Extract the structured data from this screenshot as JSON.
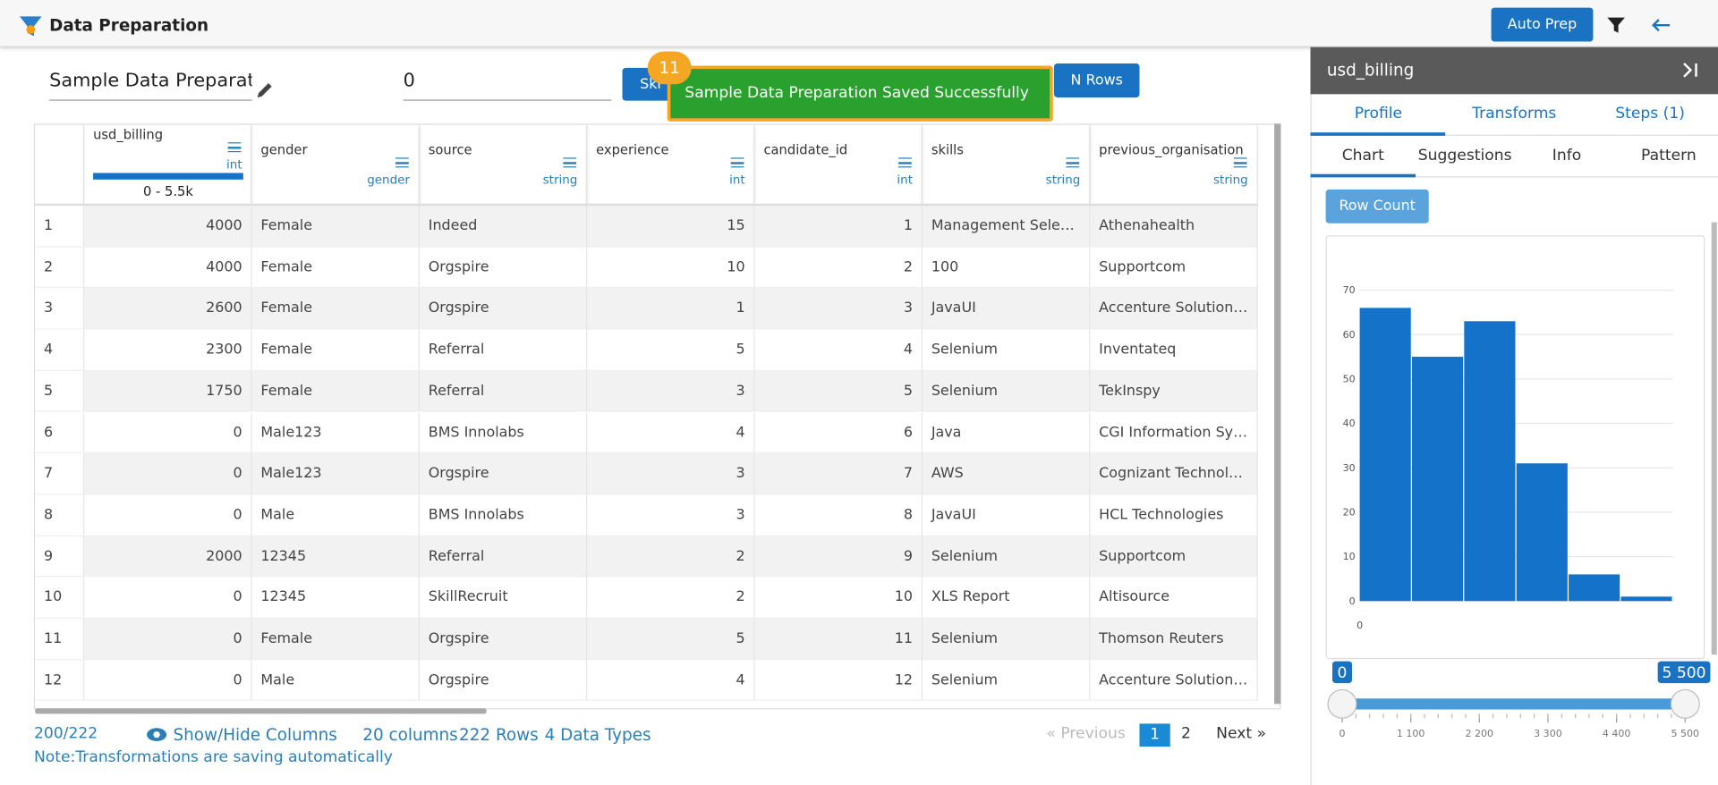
{
  "header": {
    "title": "Data Preparation",
    "auto_prep": "Auto Prep"
  },
  "toolbar": {
    "name": "Sample Data Preparation",
    "rows_input": 0,
    "skip": "Ski",
    "n_rows": "N Rows"
  },
  "toast": {
    "step": 11,
    "message": "Sample Data Preparation Saved Successfully"
  },
  "table": {
    "columns": [
      {
        "name": "usd_billing",
        "type": "int",
        "range": "0 - 5.5k"
      },
      {
        "name": "gender",
        "type": "gender"
      },
      {
        "name": "source",
        "type": "string"
      },
      {
        "name": "experience",
        "type": "int"
      },
      {
        "name": "candidate_id",
        "type": "int"
      },
      {
        "name": "skills",
        "type": "string"
      },
      {
        "name": "previous_organisation",
        "type": "string"
      }
    ],
    "rows": [
      [
        1,
        4000,
        "Female",
        "Indeed",
        15,
        1,
        "Management Selenium",
        "Athenahealth"
      ],
      [
        2,
        4000,
        "Female",
        "Orgspire",
        10,
        2,
        "100",
        "Supportcom"
      ],
      [
        3,
        2600,
        "Female",
        "Orgspire",
        1,
        3,
        "JavaUI",
        "Accenture Solutions Pvt Ltd"
      ],
      [
        4,
        2300,
        "Female",
        "Referral",
        5,
        4,
        "Selenium",
        "Inventateq"
      ],
      [
        5,
        1750,
        "Female",
        "Referral",
        3,
        5,
        "Selenium",
        "TekInspy"
      ],
      [
        6,
        0,
        "Male123",
        "BMS Innolabs",
        4,
        6,
        "Java",
        "CGI Information Systems"
      ],
      [
        7,
        0,
        "Male123",
        "Orgspire",
        3,
        7,
        "AWS",
        "Cognizant Technology Solutions"
      ],
      [
        8,
        0,
        "Male",
        "BMS Innolabs",
        3,
        8,
        "JavaUI",
        "HCL Technologies"
      ],
      [
        9,
        2000,
        "12345",
        "Referral",
        2,
        9,
        "Selenium",
        "Supportcom"
      ],
      [
        10,
        0,
        "12345",
        "SkillRecruit",
        2,
        10,
        "XLS Report",
        "Altisource"
      ],
      [
        11,
        0,
        "Female",
        "Orgspire",
        5,
        11,
        "Selenium",
        "Thomson Reuters"
      ],
      [
        12,
        0,
        "Male",
        "Orgspire",
        4,
        12,
        "Selenium",
        "Accenture Solutions Pvt Ltd"
      ]
    ]
  },
  "footer": {
    "count": "200/222",
    "show_hide": "Show/Hide Columns",
    "columns": "20 columns",
    "rows": "222 Rows",
    "types": "4 Data Types",
    "previous": "« Previous",
    "pages": [
      "1",
      "2"
    ],
    "next": "Next »",
    "note": "Note:Transformations are saving automatically"
  },
  "panel": {
    "title": "usd_billing",
    "tabs": [
      "Profile",
      "Transforms",
      "Steps (1)"
    ],
    "subtabs": [
      "Chart",
      "Suggestions",
      "Info",
      "Pattern"
    ],
    "button": "Row Count",
    "chart_data": {
      "type": "histogram",
      "values": [
        66,
        55,
        63,
        31,
        6,
        1
      ],
      "color": "#1473c8",
      "ylim": [
        0,
        70
      ],
      "yticks": [
        0,
        10,
        20,
        30,
        40,
        50,
        60,
        70
      ],
      "xtick_label": "0",
      "grid": true
    },
    "slider": {
      "min": 0,
      "max": {
        "value": 5500,
        "label": "5 500"
      },
      "ticks": [
        0,
        {
          "value": 1100,
          "label": "1 100"
        },
        {
          "value": 2200,
          "label": "2 200"
        },
        {
          "value": 3300,
          "label": "3 300"
        },
        {
          "value": 4400,
          "label": "4 400"
        },
        {
          "value": 5500,
          "label": "5 500"
        }
      ]
    }
  }
}
